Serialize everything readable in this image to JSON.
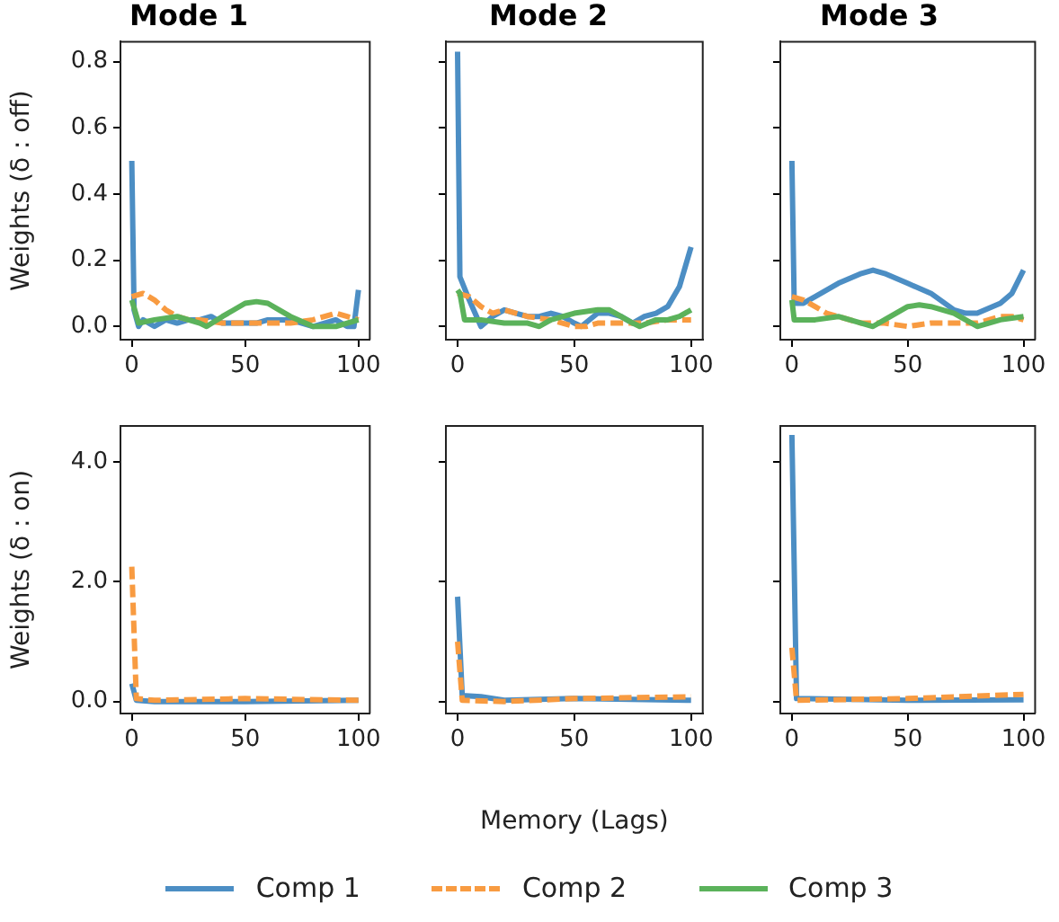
{
  "chart_data": [
    {
      "type": "line",
      "title": "Mode 1",
      "ylabel": "Weights (δ : off)",
      "xlim": [
        -5,
        105
      ],
      "ylim": [
        -0.04,
        0.86
      ],
      "xticks": [
        0,
        50,
        100
      ],
      "yticks": [
        {
          "value": 0,
          "label": "0.0"
        },
        0.2,
        0.4,
        0.6,
        0.8
      ],
      "grid": false,
      "marker": "none",
      "legend": "bottom",
      "series": [
        {
          "name": "Comp 1",
          "color": "#4c8ec4",
          "line_style": "solid",
          "x": [
            0,
            1,
            3,
            5,
            10,
            15,
            20,
            25,
            30,
            35,
            40,
            45,
            50,
            55,
            60,
            65,
            70,
            75,
            80,
            85,
            90,
            95,
            98,
            100
          ],
          "values": [
            0.5,
            0.05,
            0.0,
            0.02,
            0.0,
            0.02,
            0.01,
            0.02,
            0.02,
            0.03,
            0.01,
            0.01,
            0.01,
            0.01,
            0.02,
            0.02,
            0.02,
            0.01,
            0.0,
            0.01,
            0.02,
            0.0,
            0.0,
            0.11
          ]
        },
        {
          "name": "Comp 2",
          "color": "#f89b41",
          "line_style": "dashed",
          "x": [
            0,
            5,
            10,
            15,
            20,
            25,
            30,
            40,
            50,
            60,
            70,
            80,
            90,
            95,
            100
          ],
          "values": [
            0.09,
            0.1,
            0.08,
            0.05,
            0.03,
            0.02,
            0.02,
            0.01,
            0.01,
            0.01,
            0.01,
            0.02,
            0.04,
            0.03,
            0.02
          ]
        },
        {
          "name": "Comp 3",
          "color": "#5bb25b",
          "line_style": "solid",
          "x": [
            0,
            3,
            10,
            20,
            25,
            30,
            33,
            40,
            50,
            55,
            60,
            65,
            70,
            80,
            90,
            100
          ],
          "values": [
            0.08,
            0.01,
            0.02,
            0.03,
            0.02,
            0.01,
            0.0,
            0.03,
            0.07,
            0.075,
            0.07,
            0.05,
            0.03,
            0.0,
            0.0,
            0.02
          ]
        }
      ]
    },
    {
      "type": "line",
      "title": "Mode 2",
      "xlim": [
        -5,
        105
      ],
      "ylim": [
        -0.04,
        0.86
      ],
      "xticks": [
        0,
        50,
        100
      ],
      "yticks": [
        0,
        0.2,
        0.4,
        0.6,
        0.8
      ],
      "grid": false,
      "marker": "none",
      "tick_labels": "x",
      "series": [
        {
          "color": "#4c8ec4",
          "line_style": "solid",
          "x": [
            0,
            1,
            5,
            10,
            15,
            20,
            25,
            30,
            35,
            40,
            45,
            50,
            53,
            60,
            65,
            70,
            75,
            80,
            85,
            90,
            95,
            100
          ],
          "values": [
            0.83,
            0.15,
            0.08,
            0.0,
            0.03,
            0.05,
            0.04,
            0.03,
            0.03,
            0.04,
            0.03,
            0.01,
            0.0,
            0.04,
            0.04,
            0.03,
            0.01,
            0.03,
            0.04,
            0.06,
            0.12,
            0.24
          ]
        },
        {
          "color": "#f89b41",
          "line_style": "dashed",
          "x": [
            0,
            5,
            10,
            15,
            20,
            25,
            30,
            40,
            50,
            55,
            60,
            70,
            80,
            90,
            100
          ],
          "values": [
            0.1,
            0.09,
            0.06,
            0.04,
            0.05,
            0.04,
            0.03,
            0.02,
            0.0,
            0.0,
            0.01,
            0.01,
            0.01,
            0.02,
            0.02
          ]
        },
        {
          "color": "#5bb25b",
          "line_style": "solid",
          "x": [
            0,
            1,
            3,
            10,
            20,
            30,
            35,
            40,
            50,
            60,
            65,
            70,
            75,
            78,
            85,
            90,
            95,
            100
          ],
          "values": [
            0.11,
            0.1,
            0.02,
            0.02,
            0.01,
            0.01,
            0.0,
            0.02,
            0.04,
            0.05,
            0.05,
            0.03,
            0.01,
            0.0,
            0.02,
            0.02,
            0.03,
            0.05
          ]
        }
      ]
    },
    {
      "type": "line",
      "title": "Mode 3",
      "xlim": [
        -5,
        105
      ],
      "ylim": [
        -0.04,
        0.86
      ],
      "xticks": [
        0,
        50,
        100
      ],
      "yticks": [
        0,
        0.2,
        0.4,
        0.6,
        0.8
      ],
      "grid": false,
      "marker": "none",
      "tick_labels": "x",
      "series": [
        {
          "color": "#4c8ec4",
          "line_style": "solid",
          "x": [
            0,
            1,
            5,
            10,
            20,
            30,
            35,
            40,
            50,
            60,
            70,
            75,
            80,
            90,
            95,
            100
          ],
          "values": [
            0.5,
            0.07,
            0.07,
            0.09,
            0.13,
            0.16,
            0.17,
            0.16,
            0.13,
            0.1,
            0.05,
            0.04,
            0.04,
            0.07,
            0.1,
            0.17
          ]
        },
        {
          "color": "#f89b41",
          "line_style": "dashed",
          "x": [
            0,
            5,
            10,
            15,
            20,
            30,
            40,
            50,
            60,
            70,
            80,
            90,
            95,
            100
          ],
          "values": [
            0.09,
            0.08,
            0.06,
            0.04,
            0.03,
            0.01,
            0.01,
            0.0,
            0.01,
            0.01,
            0.01,
            0.03,
            0.03,
            0.02
          ]
        },
        {
          "color": "#5bb25b",
          "line_style": "solid",
          "x": [
            0,
            1,
            10,
            20,
            30,
            35,
            40,
            50,
            55,
            60,
            70,
            75,
            80,
            85,
            90,
            100
          ],
          "values": [
            0.08,
            0.02,
            0.02,
            0.03,
            0.01,
            0.0,
            0.02,
            0.06,
            0.065,
            0.06,
            0.04,
            0.02,
            0.0,
            0.01,
            0.02,
            0.03
          ]
        }
      ]
    },
    {
      "type": "line",
      "ylabel": "Weights (δ : on)",
      "xlim": [
        -5,
        105
      ],
      "ylim": [
        -0.2,
        4.6
      ],
      "xticks": [
        0,
        50,
        100
      ],
      "yticks": [
        {
          "value": 0,
          "label": "0.0"
        },
        {
          "value": 2,
          "label": "2.0"
        },
        {
          "value": 4,
          "label": "4.0"
        }
      ],
      "grid": false,
      "marker": "none",
      "series": [
        {
          "color": "#4c8ec4",
          "line_style": "solid",
          "x": [
            0,
            2,
            10,
            50,
            100
          ],
          "values": [
            0.3,
            0.02,
            0.0,
            0.0,
            0.02
          ]
        },
        {
          "color": "#f89b41",
          "line_style": "dashed",
          "x": [
            0,
            2,
            10,
            50,
            100
          ],
          "values": [
            2.25,
            0.05,
            0.02,
            0.05,
            0.02
          ]
        }
      ]
    },
    {
      "type": "line",
      "xlabel": "Memory (Lags)",
      "xlim": [
        -5,
        105
      ],
      "ylim": [
        -0.2,
        4.6
      ],
      "xticks": [
        0,
        50,
        100
      ],
      "yticks": [
        0,
        2,
        4
      ],
      "grid": false,
      "marker": "none",
      "tick_labels": "x",
      "series": [
        {
          "color": "#4c8ec4",
          "line_style": "solid",
          "x": [
            0,
            2,
            10,
            20,
            50,
            100
          ],
          "values": [
            1.75,
            0.1,
            0.08,
            0.02,
            0.05,
            0.02
          ]
        },
        {
          "color": "#f89b41",
          "line_style": "dashed",
          "x": [
            0,
            2,
            20,
            50,
            100
          ],
          "values": [
            1.0,
            0.02,
            0.0,
            0.05,
            0.08
          ]
        }
      ]
    },
    {
      "type": "line",
      "xlim": [
        -5,
        105
      ],
      "ylim": [
        -0.2,
        4.6
      ],
      "xticks": [
        0,
        50,
        100
      ],
      "yticks": [
        0,
        2,
        4
      ],
      "grid": false,
      "marker": "none",
      "tick_labels": "x",
      "series": [
        {
          "color": "#4c8ec4",
          "line_style": "solid",
          "x": [
            0,
            2,
            50,
            100
          ],
          "values": [
            4.45,
            0.05,
            0.02,
            0.03
          ]
        },
        {
          "color": "#f89b41",
          "line_style": "dashed",
          "x": [
            0,
            2,
            50,
            100
          ],
          "values": [
            0.9,
            0.02,
            0.05,
            0.12
          ]
        }
      ]
    }
  ]
}
